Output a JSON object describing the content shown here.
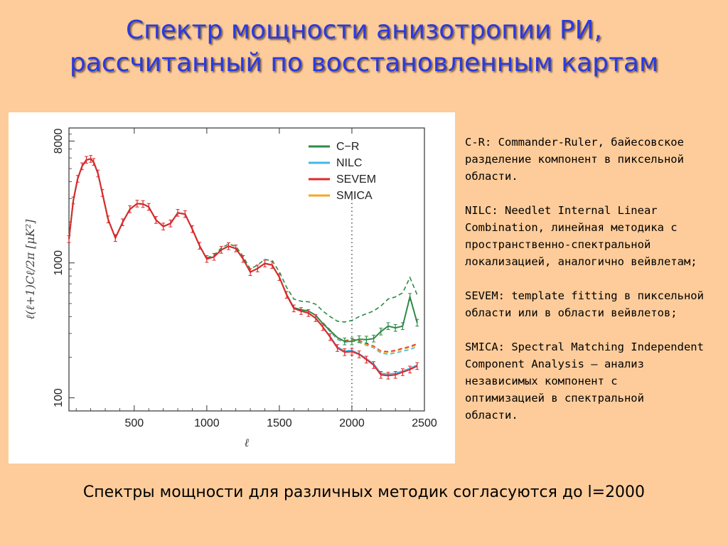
{
  "slide": {
    "title_line1": "Спектр мощности анизотропии РИ,",
    "title_line2": "рассчитанный по восстановленным картам",
    "footer": "Спектры мощности для различных методик согласуются до l=2000"
  },
  "notes": [
    {
      "line1": "C-R: Commander-Ruler, байесовское",
      "line2": "разделение компонент в пиксельной",
      "line3": "области."
    },
    {
      "line1": "NILC: Needlet Internal Linear",
      "line2": "Combination, линейная методика с",
      "line3": "пространственно-спектральной",
      "line4": "локализацией, аналогично вейвлетам;"
    },
    {
      "line1": "SEVEM: template fitting в пиксельной",
      "line2": "области или в области вейвлетов;"
    },
    {
      "line1": "SMICA: Spectral Matching Independent",
      "line2": "Component Analysis — анализ",
      "line3": "независимых компонент с",
      "line4": "оптимизацией в спектральной",
      "line5": "области."
    }
  ],
  "colors": {
    "title": "#2a3ae0",
    "background": "#fdcc9a",
    "C-R": "#2e8b46",
    "NILC": "#3fb8e8",
    "SEVEM": "#e0282c",
    "SMICA": "#f5a623"
  },
  "chart_data": {
    "type": "line",
    "xlabel": "ℓ",
    "ylabel": "ℓ(ℓ+1)Cℓ/2π  [μK²]",
    "xlim": [
      50,
      2500
    ],
    "ylim": [
      80,
      10000
    ],
    "yscale": "log",
    "x_ticks": [
      "500",
      "1000",
      "1500",
      "2000",
      "2500"
    ],
    "y_ticks": [
      "100",
      "1000",
      "8000"
    ],
    "legend_position": "top-right",
    "reference_line_x": 2000,
    "legend": [
      "C−R",
      "NILC",
      "SEVEM",
      "SMICA"
    ],
    "x": [
      50,
      80,
      110,
      140,
      170,
      200,
      220,
      250,
      280,
      320,
      370,
      420,
      470,
      520,
      560,
      600,
      650,
      700,
      750,
      800,
      850,
      900,
      950,
      1000,
      1050,
      1100,
      1150,
      1200,
      1250,
      1300,
      1350,
      1400,
      1450,
      1500,
      1550,
      1600,
      1650,
      1700,
      1750,
      1800,
      1850,
      1900,
      1950,
      2000,
      2050,
      2100,
      2150,
      2200,
      2250,
      2300,
      2350,
      2400,
      2450
    ],
    "series": [
      {
        "name": "C−R",
        "values": [
          1500,
          2900,
          4200,
          5200,
          5800,
          5900,
          5600,
          4600,
          3300,
          2100,
          1530,
          2000,
          2500,
          2750,
          2730,
          2600,
          2080,
          1860,
          1960,
          2350,
          2300,
          1780,
          1340,
          1070,
          1110,
          1250,
          1330,
          1280,
          1070,
          855,
          910,
          990,
          965,
          785,
          585,
          465,
          450,
          440,
          410,
          355,
          315,
          280,
          262,
          262,
          272,
          270,
          275,
          310,
          340,
          330,
          340,
          560,
          360
        ]
      },
      {
        "name": "NILC",
        "values": [
          1500,
          2900,
          4200,
          5200,
          5800,
          5900,
          5600,
          4600,
          3300,
          2100,
          1530,
          2000,
          2500,
          2750,
          2730,
          2600,
          2080,
          1860,
          1960,
          2350,
          2300,
          1780,
          1340,
          1070,
          1110,
          1250,
          1330,
          1280,
          1070,
          855,
          910,
          990,
          965,
          785,
          580,
          460,
          440,
          425,
          390,
          335,
          285,
          238,
          222,
          225,
          212,
          195,
          178,
          152,
          150,
          152,
          158,
          165,
          175
        ]
      },
      {
        "name": "SEVEM",
        "values": [
          1500,
          2900,
          4200,
          5200,
          5800,
          5900,
          5600,
          4600,
          3300,
          2100,
          1530,
          2000,
          2500,
          2750,
          2730,
          2600,
          2080,
          1860,
          1960,
          2350,
          2300,
          1780,
          1340,
          1070,
          1110,
          1250,
          1330,
          1280,
          1070,
          855,
          910,
          990,
          965,
          785,
          580,
          460,
          440,
          425,
          390,
          335,
          282,
          234,
          218,
          220,
          210,
          192,
          175,
          148,
          146,
          148,
          155,
          162,
          172
        ]
      },
      {
        "name": "SMICA",
        "values": [
          1500,
          2900,
          4200,
          5200,
          5800,
          5900,
          5600,
          4600,
          3300,
          2100,
          1530,
          2000,
          2500,
          2750,
          2730,
          2600,
          2080,
          1860,
          1960,
          2350,
          2300,
          1780,
          1340,
          1070,
          1110,
          1250,
          1330,
          1280,
          1070,
          855,
          910,
          990,
          965,
          785,
          580,
          460,
          440,
          425,
          390,
          335,
          284,
          236,
          220,
          223,
          212,
          195,
          178,
          151,
          149,
          151,
          157,
          164,
          174
        ]
      }
    ],
    "dashed_series": [
      {
        "base": "C−R",
        "values": [
          null,
          null,
          null,
          null,
          null,
          null,
          null,
          null,
          null,
          null,
          null,
          null,
          null,
          null,
          null,
          null,
          null,
          null,
          null,
          null,
          null,
          null,
          null,
          1090,
          1140,
          1290,
          1380,
          1330,
          1120,
          900,
          965,
          1060,
          1040,
          860,
          660,
          540,
          520,
          515,
          495,
          440,
          400,
          370,
          365,
          375,
          400,
          420,
          440,
          480,
          540,
          560,
          600,
          780,
          580
        ]
      },
      {
        "base": "NILC",
        "values": [
          null,
          null,
          null,
          null,
          null,
          null,
          null,
          null,
          null,
          null,
          null,
          null,
          null,
          null,
          null,
          null,
          null,
          null,
          null,
          null,
          null,
          null,
          null,
          null,
          null,
          null,
          null,
          null,
          null,
          null,
          null,
          null,
          null,
          null,
          null,
          null,
          null,
          null,
          null,
          355,
          310,
          270,
          258,
          265,
          258,
          245,
          235,
          215,
          210,
          215,
          222,
          228,
          240
        ]
      },
      {
        "base": "SEVEM",
        "values": [
          null,
          null,
          null,
          null,
          null,
          null,
          null,
          null,
          null,
          null,
          null,
          null,
          null,
          null,
          null,
          null,
          null,
          null,
          null,
          null,
          null,
          null,
          null,
          null,
          null,
          null,
          null,
          null,
          null,
          null,
          null,
          null,
          null,
          null,
          null,
          null,
          null,
          null,
          null,
          360,
          318,
          278,
          265,
          272,
          266,
          252,
          242,
          222,
          220,
          225,
          233,
          240,
          252
        ]
      },
      {
        "base": "SMICA",
        "values": [
          null,
          null,
          null,
          null,
          null,
          null,
          null,
          null,
          null,
          null,
          null,
          null,
          null,
          null,
          null,
          null,
          null,
          null,
          null,
          null,
          null,
          null,
          null,
          null,
          null,
          null,
          null,
          null,
          null,
          null,
          null,
          null,
          null,
          null,
          null,
          null,
          null,
          null,
          null,
          358,
          314,
          274,
          262,
          268,
          262,
          248,
          238,
          219,
          216,
          221,
          229,
          236,
          247
        ]
      }
    ]
  }
}
